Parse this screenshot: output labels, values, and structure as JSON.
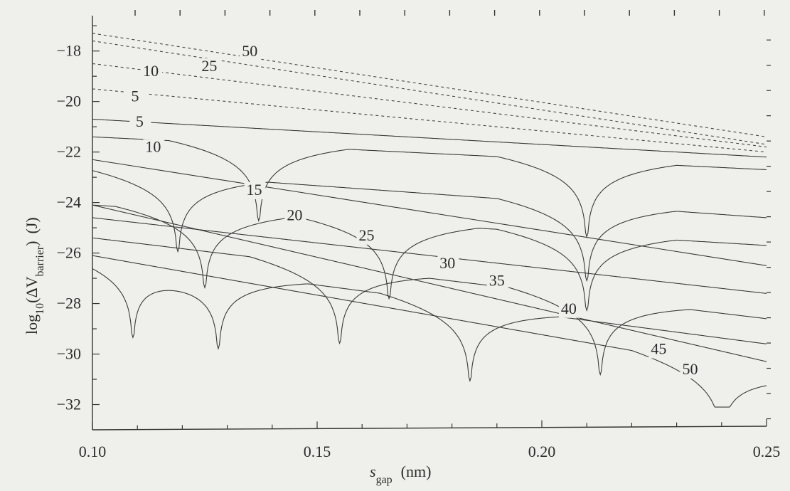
{
  "chart_data": {
    "type": "line",
    "xlabel": {
      "main": "s",
      "sub": "gap",
      "unit": "(nm)"
    },
    "ylabel": {
      "pre": "log",
      "pre_sub": "10",
      "mid": "(ΔV",
      "sub": "barrier",
      "post": ")",
      "unit": "(J)"
    },
    "xlim": [
      0.1,
      0.25
    ],
    "ylim": [
      -33,
      -16.6
    ],
    "x_ticks": [
      0.1,
      0.15,
      0.2,
      0.25
    ],
    "x_tick_labels": [
      "0.10",
      "0.15",
      "0.20",
      "0.25"
    ],
    "y_ticks": [
      -18,
      -20,
      -22,
      -24,
      -26,
      -28,
      -30,
      -32
    ],
    "y_tick_labels": [
      "−18",
      "−20",
      "−22",
      "−24",
      "−26",
      "−28",
      "−30",
      "−32"
    ],
    "grid": false,
    "dashed_series": [
      {
        "name": "50",
        "points": [
          [
            0.1,
            -17.3
          ],
          [
            0.25,
            -21.4
          ]
        ],
        "label_at": [
          0.135,
          -18.2
        ]
      },
      {
        "name": "25",
        "points": [
          [
            0.1,
            -17.6
          ],
          [
            0.25,
            -21.7
          ]
        ],
        "label_at": [
          0.126,
          -18.8
        ]
      },
      {
        "name": "10",
        "points": [
          [
            0.1,
            -18.5
          ],
          [
            0.25,
            -21.8
          ]
        ],
        "label_at": [
          0.113,
          -19.0
        ]
      },
      {
        "name": "5",
        "points": [
          [
            0.1,
            -19.5
          ],
          [
            0.25,
            -22.0
          ]
        ],
        "label_at": [
          0.1095,
          -20.0
        ]
      }
    ],
    "solid_series": [
      {
        "name": "5",
        "start": -20.7,
        "end": -22.2,
        "amp": 1.0,
        "wave": 0,
        "zeros": [],
        "label_at": [
          0.1105,
          -21.0
        ]
      },
      {
        "name": "10",
        "start": -21.4,
        "end": -22.7,
        "amp": 1.0,
        "wave": 0,
        "zeros": [
          0.137,
          0.21
        ],
        "label_at": [
          0.1135,
          -22.0
        ]
      },
      {
        "name": "15",
        "start": -22.7,
        "end": -24.6,
        "amp": 1.0,
        "wave": 0,
        "zeros": [
          0.119,
          0.21
        ],
        "label_at": [
          0.136,
          -23.7
        ]
      },
      {
        "name": "20",
        "start": -22.3,
        "end": -26.5,
        "amp": 1.0,
        "wave": 0,
        "zeros": [],
        "label_at": [
          0.145,
          -24.7
        ]
      },
      {
        "name": "25",
        "start": -24.1,
        "end": -25.7,
        "amp": 1.0,
        "wave": 0,
        "zeros": [
          0.125,
          0.166,
          0.21
        ],
        "label_at": [
          0.161,
          -25.5
        ]
      },
      {
        "name": "30",
        "start": -24.6,
        "end": -27.6,
        "amp": 1.0,
        "wave": 0,
        "zeros": [],
        "label_at": [
          0.179,
          -26.6
        ]
      },
      {
        "name": "35",
        "start": -25.4,
        "end": -28.6,
        "amp": 1.0,
        "wave": 0,
        "zeros": [
          0.155,
          0.213
        ],
        "label_at": [
          0.19,
          -27.3
        ]
      },
      {
        "name": "40",
        "start": -24.1,
        "end": -30.3,
        "amp": 1.0,
        "wave": 0,
        "zeros": [],
        "label_at": [
          0.206,
          -28.4
        ]
      },
      {
        "name": "45",
        "start": -26.1,
        "end": -29.6,
        "amp": 1.0,
        "wave": 0,
        "zeros": [
          0.109,
          0.128,
          0.184
        ],
        "label_at": [
          0.226,
          -30.0
        ]
      },
      {
        "name": "50",
        "start": -26.1,
        "end": -30.8,
        "amp": 1.0,
        "wave": 0,
        "zeros": [
          0.24
        ],
        "label_at": [
          0.233,
          -30.8
        ]
      }
    ]
  }
}
